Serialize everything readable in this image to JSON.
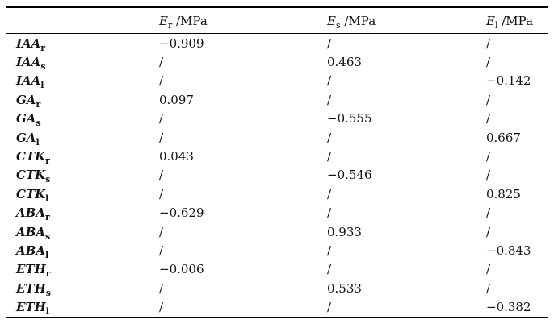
{
  "table": {
    "colors": {
      "text": "#111111",
      "rule": "#000000",
      "background": "#ffffff"
    },
    "headers": [
      {
        "base": "E",
        "sub": "r",
        "unit": " /MPa"
      },
      {
        "base": "E",
        "sub": "s",
        "unit": " /MPa"
      },
      {
        "base": "E",
        "sub": "l",
        "unit": " /MPa"
      }
    ],
    "rows": [
      {
        "label": {
          "base": "IAA",
          "sub": "r"
        },
        "er": "−0.909",
        "es": "/",
        "el": "/"
      },
      {
        "label": {
          "base": "IAA",
          "sub": "s"
        },
        "er": "/",
        "es": "0.463",
        "el": "/"
      },
      {
        "label": {
          "base": "IAA",
          "sub": "l"
        },
        "er": "/",
        "es": "/",
        "el": "−0.142"
      },
      {
        "label": {
          "base": "GA",
          "sub": "r"
        },
        "er": "0.097",
        "es": "/",
        "el": "/"
      },
      {
        "label": {
          "base": "GA",
          "sub": "s"
        },
        "er": "/",
        "es": "−0.555",
        "el": "/"
      },
      {
        "label": {
          "base": "GA",
          "sub": "l"
        },
        "er": "/",
        "es": "/",
        "el": "0.667"
      },
      {
        "label": {
          "base": "CTK",
          "sub": "r"
        },
        "er": "0.043",
        "es": "/",
        "el": "/"
      },
      {
        "label": {
          "base": "CTK",
          "sub": "s"
        },
        "er": "/",
        "es": "−0.546",
        "el": "/"
      },
      {
        "label": {
          "base": "CTK",
          "sub": "l"
        },
        "er": "/",
        "es": "/",
        "el": "0.825"
      },
      {
        "label": {
          "base": "ABA",
          "sub": "r"
        },
        "er": "−0.629",
        "es": "/",
        "el": "/"
      },
      {
        "label": {
          "base": "ABA",
          "sub": "s"
        },
        "er": "/",
        "es": "0.933",
        "el": "/"
      },
      {
        "label": {
          "base": "ABA",
          "sub": "l"
        },
        "er": "/",
        "es": "/",
        "el": "−0.843"
      },
      {
        "label": {
          "base": "ETH",
          "sub": "r"
        },
        "er": "−0.006",
        "es": "/",
        "el": "/"
      },
      {
        "label": {
          "base": "ETH",
          "sub": "s"
        },
        "er": "/",
        "es": "0.533",
        "el": "/"
      },
      {
        "label": {
          "base": "ETH",
          "sub": "l"
        },
        "er": "/",
        "es": "/",
        "el": "−0.382"
      }
    ]
  }
}
